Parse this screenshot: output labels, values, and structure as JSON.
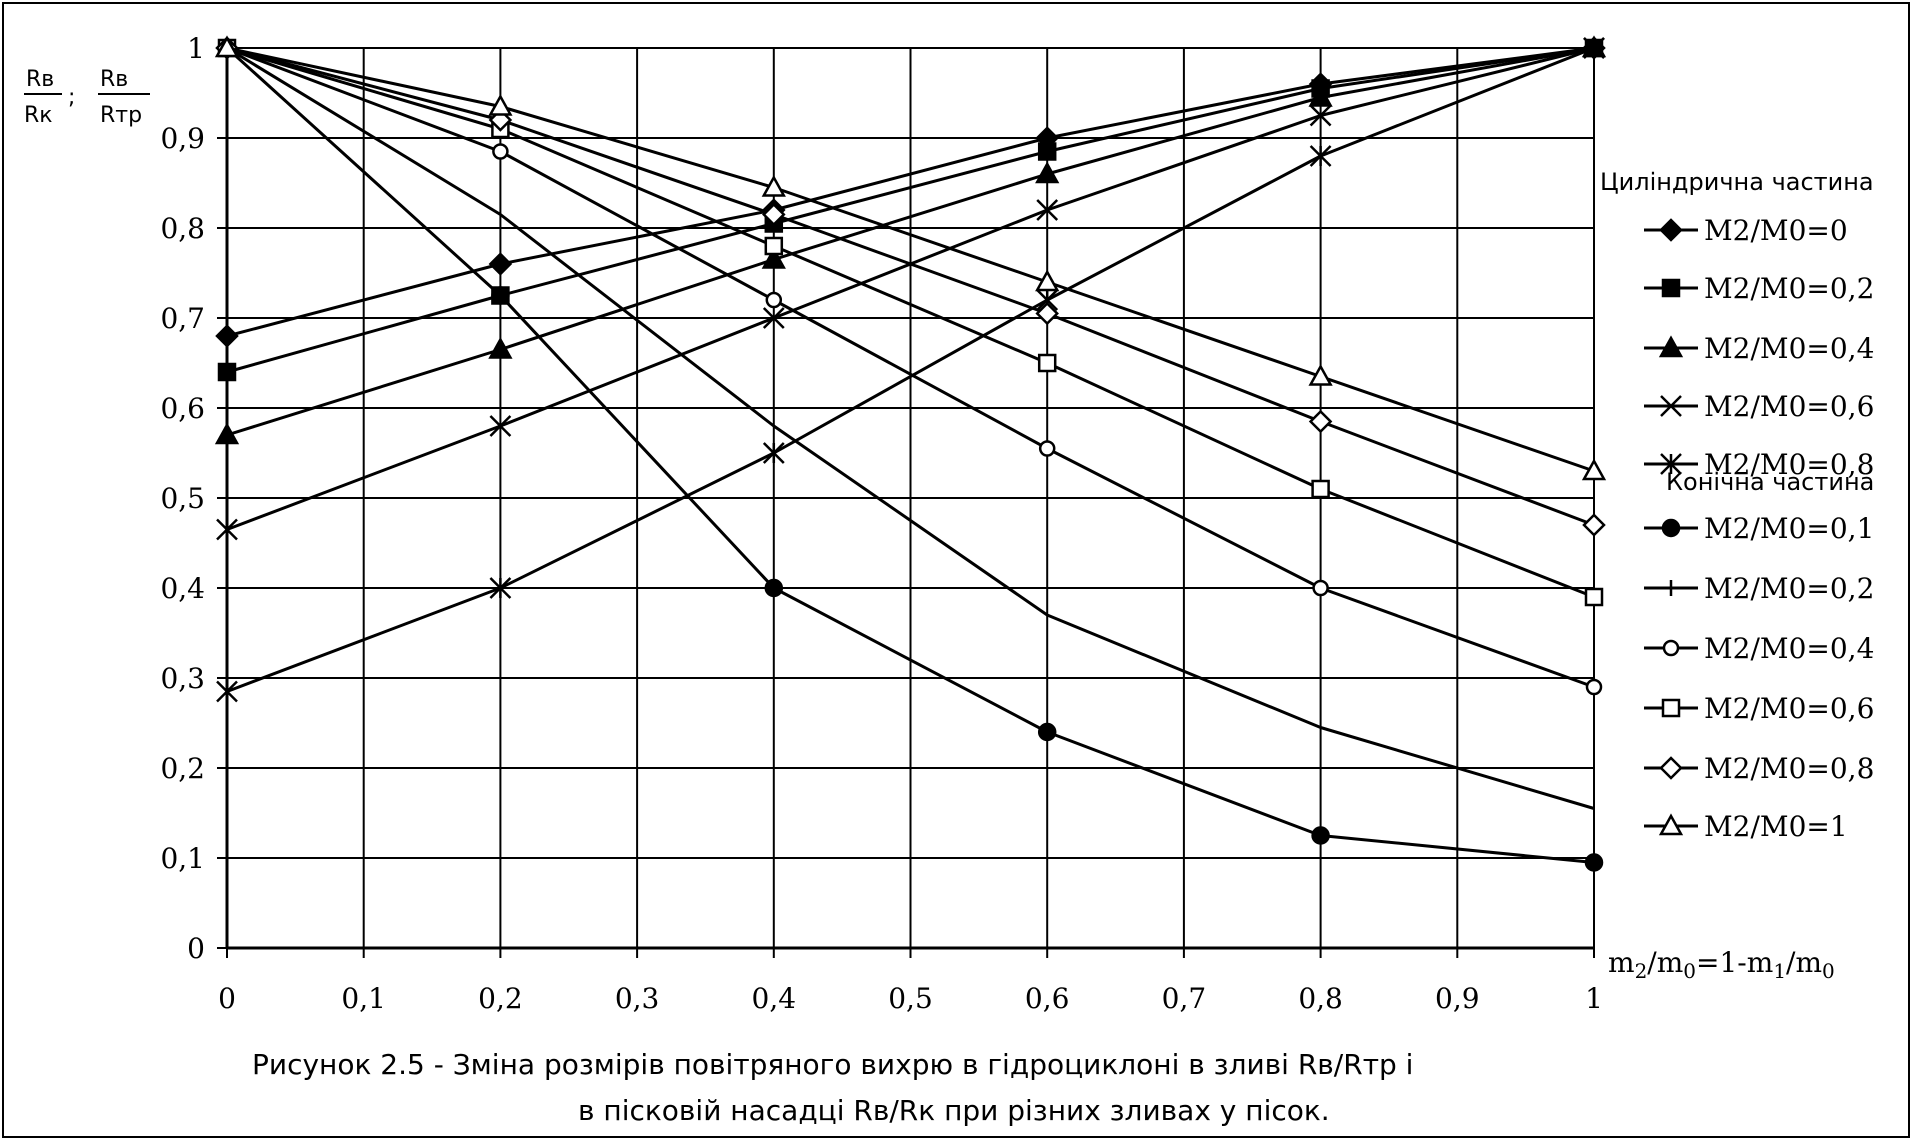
{
  "chart_data": {
    "type": "line",
    "xlabel": "m2/m0=1-m1/m0",
    "ylabel": "Rв/Rк ; Rв/Rтр",
    "xlim": [
      0,
      1
    ],
    "ylim": [
      0,
      1
    ],
    "x_ticks": [
      "0",
      "0,1",
      "0,2",
      "0,3",
      "0,4",
      "0,5",
      "0,6",
      "0,7",
      "0,8",
      "0,9",
      "1"
    ],
    "y_ticks": [
      "0",
      "0,1",
      "0,2",
      "0,3",
      "0,4",
      "0,5",
      "0,6",
      "0,7",
      "0,8",
      "0,9",
      "1"
    ],
    "grid": true,
    "legend_position": "right",
    "legend_groups": [
      "Циліндрична частина",
      "Конічна частина"
    ],
    "x": [
      0,
      0.2,
      0.4,
      0.6,
      0.8,
      1.0
    ],
    "series": [
      {
        "name": "M2/M0=0",
        "group": "Циліндрична частина",
        "marker": "diamond-filled",
        "values": [
          0.68,
          0.76,
          0.82,
          0.9,
          0.96,
          1.0
        ]
      },
      {
        "name": "M2/M0=0,2",
        "group": "Циліндрична частина",
        "marker": "square-filled",
        "values": [
          0.64,
          0.725,
          0.805,
          0.885,
          0.955,
          1.0
        ]
      },
      {
        "name": "M2/M0=0,4",
        "group": "Циліндрична частина",
        "marker": "triangle-filled",
        "values": [
          0.57,
          0.665,
          0.765,
          0.86,
          0.945,
          1.0
        ]
      },
      {
        "name": "M2/M0=0,6",
        "group": "Циліндрична частина",
        "marker": "x",
        "values": [
          0.465,
          0.58,
          0.7,
          0.82,
          0.925,
          1.0
        ]
      },
      {
        "name": "M2/M0=0,8",
        "group": "Циліндрична частина",
        "marker": "star",
        "values": [
          0.285,
          0.4,
          0.55,
          0.72,
          0.88,
          1.0
        ]
      },
      {
        "name": "M2/M0=0,1",
        "group": "Конічна частина",
        "marker": "circle-filled",
        "values": [
          1.0,
          0.725,
          0.4,
          0.24,
          0.125,
          0.095
        ]
      },
      {
        "name": "M2/M0=0,2",
        "group": "Конічна частина",
        "marker": "plus",
        "values": [
          1.0,
          0.815,
          0.58,
          0.37,
          0.245,
          0.155
        ]
      },
      {
        "name": "M2/M0=0,4",
        "group": "Конічна частина",
        "marker": "circle-open",
        "values": [
          1.0,
          0.885,
          0.72,
          0.555,
          0.4,
          0.29
        ]
      },
      {
        "name": "M2/M0=0,6",
        "group": "Конічна частина",
        "marker": "square-open",
        "values": [
          1.0,
          0.91,
          0.78,
          0.65,
          0.51,
          0.39
        ]
      },
      {
        "name": "M2/M0=0,8",
        "group": "Конічна частина",
        "marker": "diamond-open",
        "values": [
          1.0,
          0.92,
          0.815,
          0.705,
          0.585,
          0.47
        ]
      },
      {
        "name": "M2/M0=1",
        "group": "Конічна частина",
        "marker": "triangle-open",
        "values": [
          1.0,
          0.935,
          0.845,
          0.74,
          0.635,
          0.53
        ]
      }
    ],
    "caption_line1": "Рисунок 2.5 -  Зміна розмірів повітряного вихрю в гідроциклоні в зливі  Rв/Rтр  і",
    "caption_line2": "в пісковій насадці  Rв/Rк  при різних зливах у пісок."
  }
}
